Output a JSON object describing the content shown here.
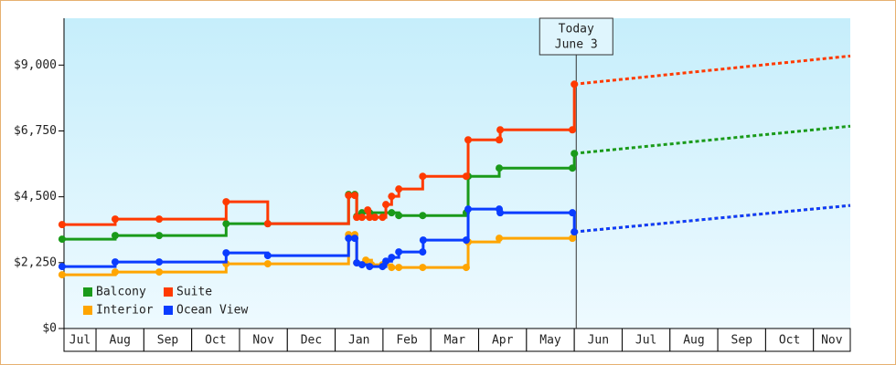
{
  "chart_data": {
    "type": "step-line",
    "xlim": [
      0.33,
      16.77
    ],
    "months": [
      "Jul",
      "Aug",
      "Sep",
      "Oct",
      "Nov",
      "Dec",
      "Jan",
      "Feb",
      "Mar",
      "Apr",
      "May",
      "Jun",
      "Jul",
      "Aug",
      "Sep",
      "Oct",
      "Nov"
    ],
    "ylim": [
      0,
      10600
    ],
    "yticks": [
      {
        "value": 0,
        "label": "$0"
      },
      {
        "value": 2250,
        "label": "$2,250"
      },
      {
        "value": 4500,
        "label": "$4,500"
      },
      {
        "value": 6750,
        "label": "$6,750"
      },
      {
        "value": 9000,
        "label": "$9,000"
      }
    ],
    "legend": "lower left",
    "annotation": {
      "x": 11.04,
      "lines": [
        "Today",
        "June 3"
      ]
    },
    "series": [
      {
        "name": "Balcony",
        "color": "#1a9a1a",
        "x": [
          0.29,
          1.4,
          2.32,
          3.72,
          4.59,
          6.28,
          6.41,
          6.45,
          6.56,
          6.72,
          7.18,
          7.33,
          7.83,
          8.74,
          8.78,
          9.43,
          10.96,
          11.0
        ],
        "values": [
          3052,
          3176,
          3176,
          3580,
          3580,
          4578,
          4578,
          3830,
          3955,
          3955,
          3955,
          3860,
          3860,
          3955,
          5200,
          5480,
          5480,
          5979
        ],
        "forecast": {
          "x": [
            11.0,
            16.77
          ],
          "values": [
            5979,
            6913
          ]
        }
      },
      {
        "name": "Suite",
        "color": "#ff3a00",
        "x": [
          0.29,
          1.4,
          2.32,
          3.72,
          4.59,
          6.28,
          6.41,
          6.45,
          6.56,
          6.68,
          6.72,
          6.83,
          6.99,
          7.06,
          7.18,
          7.33,
          7.83,
          8.74,
          8.78,
          9.43,
          9.45,
          10.96,
          11.0
        ],
        "values": [
          3550,
          3737,
          3737,
          4330,
          3580,
          4546,
          4546,
          3800,
          3800,
          4050,
          3800,
          3800,
          3800,
          4235,
          4515,
          4765,
          5200,
          5200,
          6446,
          6446,
          6789,
          6789,
          8346
        ],
        "forecast": {
          "x": [
            11.0,
            16.77
          ],
          "values": [
            8346,
            9311
          ]
        }
      },
      {
        "name": "Interior",
        "color": "#ffa500",
        "x": [
          0.29,
          1.4,
          2.32,
          3.72,
          4.59,
          6.28,
          6.41,
          6.45,
          6.64,
          6.76,
          6.99,
          7.18,
          7.33,
          7.83,
          8.74,
          8.78,
          9.43,
          10.96,
          11.0
        ],
        "values": [
          1837,
          1930,
          1930,
          2211,
          2211,
          3207,
          3207,
          2242,
          2335,
          2180,
          2180,
          2086,
          2086,
          2086,
          2086,
          2958,
          3083,
          3083,
          3300
        ],
        "forecast": {
          "x": [
            11.0,
            16.77
          ],
          "values": [
            3300,
            4204
          ]
        }
      },
      {
        "name": "Ocean View",
        "color": "#0a3cff",
        "x": [
          0.29,
          1.4,
          2.32,
          3.72,
          4.59,
          6.28,
          6.41,
          6.45,
          6.56,
          6.72,
          6.99,
          7.06,
          7.18,
          7.33,
          7.83,
          7.84,
          8.74,
          8.78,
          9.43,
          9.45,
          10.96,
          11.0
        ],
        "values": [
          2117,
          2273,
          2273,
          2584,
          2491,
          3083,
          3083,
          2242,
          2180,
          2117,
          2117,
          2300,
          2429,
          2616,
          2616,
          3020,
          3020,
          4079,
          4079,
          3955,
          3955,
          3300
        ],
        "forecast": {
          "x": [
            11.0,
            16.77
          ],
          "values": [
            3300,
            4204
          ]
        }
      }
    ]
  }
}
